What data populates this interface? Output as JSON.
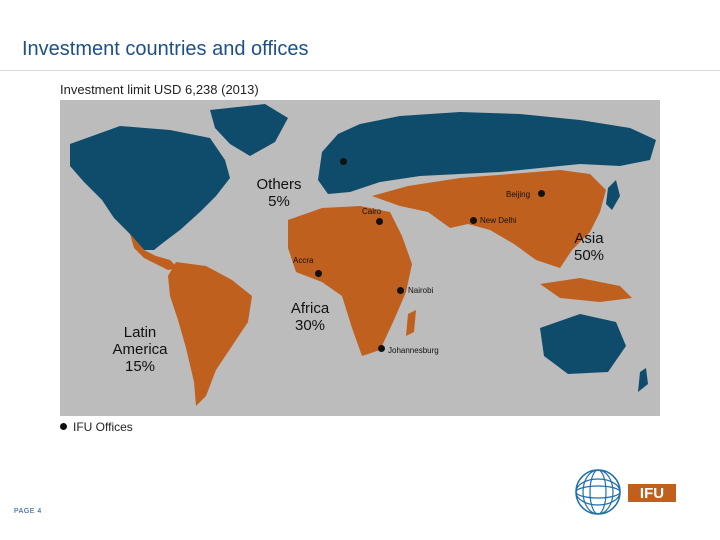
{
  "slide": {
    "title": "Investment countries and offices",
    "subtitle": "Investment limit USD 6,238 (2013)",
    "page": "PAGE 4"
  },
  "regions": [
    {
      "id": "others",
      "label": "Others",
      "share": "5%",
      "color": "#0f4c6b"
    },
    {
      "id": "asia",
      "label": "Asia",
      "share": "50%",
      "color": "#c0601e"
    },
    {
      "id": "africa",
      "label": "Africa",
      "share": "30%",
      "color": "#c0601e"
    },
    {
      "id": "latin-america",
      "label": "Latin America",
      "share": "15%",
      "color": "#c0601e"
    }
  ],
  "offices": [
    {
      "name": "Copenhagen",
      "label": ""
    },
    {
      "name": "Beijing",
      "label": "Beijing"
    },
    {
      "name": "Cairo",
      "label": "Cairo"
    },
    {
      "name": "New Delhi",
      "label": "New Delhi"
    },
    {
      "name": "Accra",
      "label": "Accra"
    },
    {
      "name": "Nairobi",
      "label": "Nairobi"
    },
    {
      "name": "Johannesburg",
      "label": "Johannesburg"
    }
  ],
  "legend": {
    "label": "IFU Offices"
  },
  "logo": {
    "text": "IFU",
    "color": "#c0601e",
    "globe_color": "#1f6fb0"
  }
}
